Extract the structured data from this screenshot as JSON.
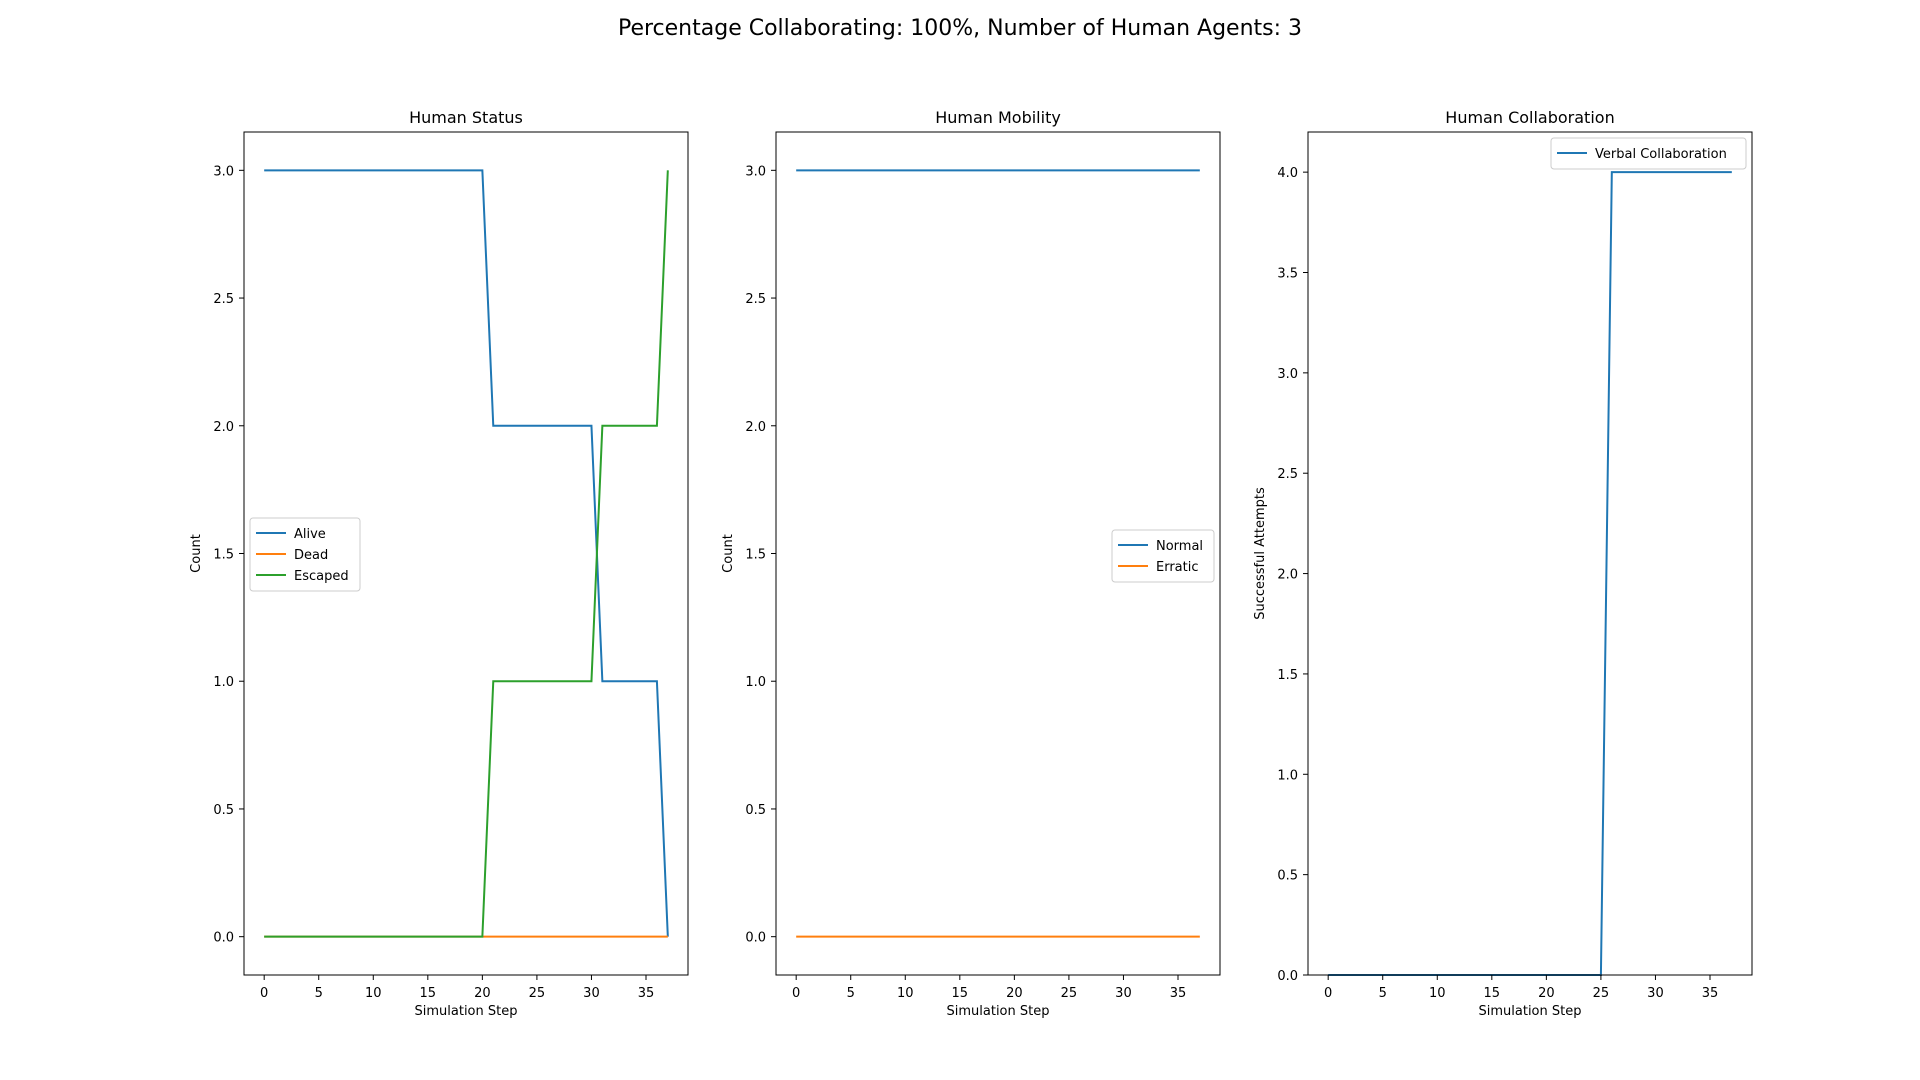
{
  "figure": {
    "suptitle": "Percentage Collaborating: 100%, Number of Human Agents: 3"
  },
  "chart_data": [
    {
      "type": "line",
      "title": "Human Status",
      "xlabel": "Simulation Step",
      "ylabel": "Count",
      "xlim": [
        -1.85,
        38.85
      ],
      "ylim": [
        -0.15,
        3.15
      ],
      "xticks": [
        0,
        5,
        10,
        15,
        20,
        25,
        30,
        35
      ],
      "yticks": [
        0.0,
        0.5,
        1.0,
        1.5,
        2.0,
        2.5,
        3.0
      ],
      "ytick_labels": [
        "0.0",
        "0.5",
        "1.0",
        "1.5",
        "2.0",
        "2.5",
        "3.0"
      ],
      "legend_position": "center-left",
      "series": [
        {
          "name": "Alive",
          "color": "#1f77b4",
          "points": [
            [
              0,
              3
            ],
            [
              20,
              3
            ],
            [
              21,
              2
            ],
            [
              30,
              2
            ],
            [
              31,
              1
            ],
            [
              36,
              1
            ],
            [
              37,
              0
            ]
          ]
        },
        {
          "name": "Dead",
          "color": "#ff7f0e",
          "points": [
            [
              0,
              0
            ],
            [
              37,
              0
            ]
          ]
        },
        {
          "name": "Escaped",
          "color": "#2ca02c",
          "points": [
            [
              0,
              0
            ],
            [
              20,
              0
            ],
            [
              21,
              1
            ],
            [
              30,
              1
            ],
            [
              31,
              2
            ],
            [
              36,
              2
            ],
            [
              37,
              3
            ]
          ]
        }
      ]
    },
    {
      "type": "line",
      "title": "Human Mobility",
      "xlabel": "Simulation Step",
      "ylabel": "Count",
      "xlim": [
        -1.85,
        38.85
      ],
      "ylim": [
        -0.15,
        3.15
      ],
      "xticks": [
        0,
        5,
        10,
        15,
        20,
        25,
        30,
        35
      ],
      "yticks": [
        0.0,
        0.5,
        1.0,
        1.5,
        2.0,
        2.5,
        3.0
      ],
      "ytick_labels": [
        "0.0",
        "0.5",
        "1.0",
        "1.5",
        "2.0",
        "2.5",
        "3.0"
      ],
      "legend_position": "center-right",
      "series": [
        {
          "name": "Normal",
          "color": "#1f77b4",
          "points": [
            [
              0,
              3
            ],
            [
              37,
              3
            ]
          ]
        },
        {
          "name": "Erratic",
          "color": "#ff7f0e",
          "points": [
            [
              0,
              0
            ],
            [
              37,
              0
            ]
          ]
        }
      ]
    },
    {
      "type": "line",
      "title": "Human Collaboration",
      "xlabel": "Simulation Step",
      "ylabel": "Successful Attempts",
      "xlim": [
        -1.85,
        38.85
      ],
      "ylim": [
        0.0,
        4.2
      ],
      "xticks": [
        0,
        5,
        10,
        15,
        20,
        25,
        30,
        35
      ],
      "yticks": [
        0.0,
        0.5,
        1.0,
        1.5,
        2.0,
        2.5,
        3.0,
        3.5,
        4.0
      ],
      "ytick_labels": [
        "0.0",
        "0.5",
        "1.0",
        "1.5",
        "2.0",
        "2.5",
        "3.0",
        "3.5",
        "4.0"
      ],
      "legend_position": "upper-right",
      "series": [
        {
          "name": "Verbal Collaboration",
          "color": "#1f77b4",
          "points": [
            [
              0,
              0
            ],
            [
              25,
              0
            ],
            [
              26,
              4
            ],
            [
              37,
              4
            ]
          ]
        }
      ]
    }
  ]
}
